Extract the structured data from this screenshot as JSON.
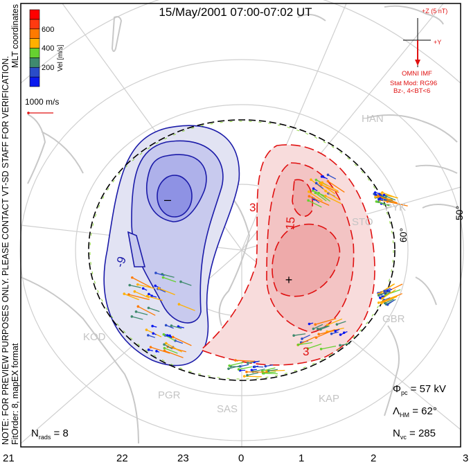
{
  "title": "15/May/2001 07:00-07:02 UT",
  "notes": {
    "preview": "NOTE: FOR PREVIEW PURPOSES ONLY. PLEASE CONTACT VT-SD STAFF FOR VERIFICATION.",
    "coords": "MLT coordinates",
    "fit": "FitOrder: 8, mapEX format"
  },
  "colorbar": {
    "label": "Vel [m/s]",
    "ticks": [
      "200",
      "400",
      "600"
    ],
    "colors": [
      "#0a1aee",
      "#2a4cc8",
      "#3f8a6e",
      "#66d030",
      "#ffb000",
      "#ff7a00",
      "#ff3a10",
      "#ff0000"
    ]
  },
  "scale": {
    "label": "1000 m/s"
  },
  "imf": {
    "z_label": "+Z (5 nT)",
    "y_label": "+Y",
    "source": "OMNI IMF",
    "model": "Stat Mod: RG96",
    "condition": "Bz-, 4<BT<6"
  },
  "stations": [
    "HAN",
    "STO",
    "PYK",
    "GBR",
    "KAP",
    "SAS",
    "PGR",
    "KOD"
  ],
  "lat_labels": [
    "60°",
    "50°"
  ],
  "contour_labels": [
    "-9",
    "3",
    "15",
    "3"
  ],
  "stats": {
    "phi_label": "Φ",
    "phi_sub": "pc",
    "phi_value": "= 57 kV",
    "lambda_label": "Λ",
    "lambda_sub": "HM",
    "lambda_value": "= 62°",
    "nvc_label": "N",
    "nvc_sub": "vc",
    "nvc_value": "= 285",
    "nrads_label": "N",
    "nrads_sub": "rads",
    "nrads_value": "= 8"
  },
  "chart_data": {
    "type": "heatmap",
    "title": "15/May/2001 07:00-07:02 UT",
    "x_ticks_mlt": [
      "21",
      "22",
      "23",
      "0",
      "1",
      "2",
      "3"
    ],
    "potential_kV": 57,
    "heppner_maynard_boundary_deg": 62,
    "n_vectors": 285,
    "n_radars": 8,
    "velocity_range_m_s": [
      0,
      800
    ],
    "colors": {
      "negative": "#1a1aa8",
      "positive": "#e01010"
    }
  }
}
